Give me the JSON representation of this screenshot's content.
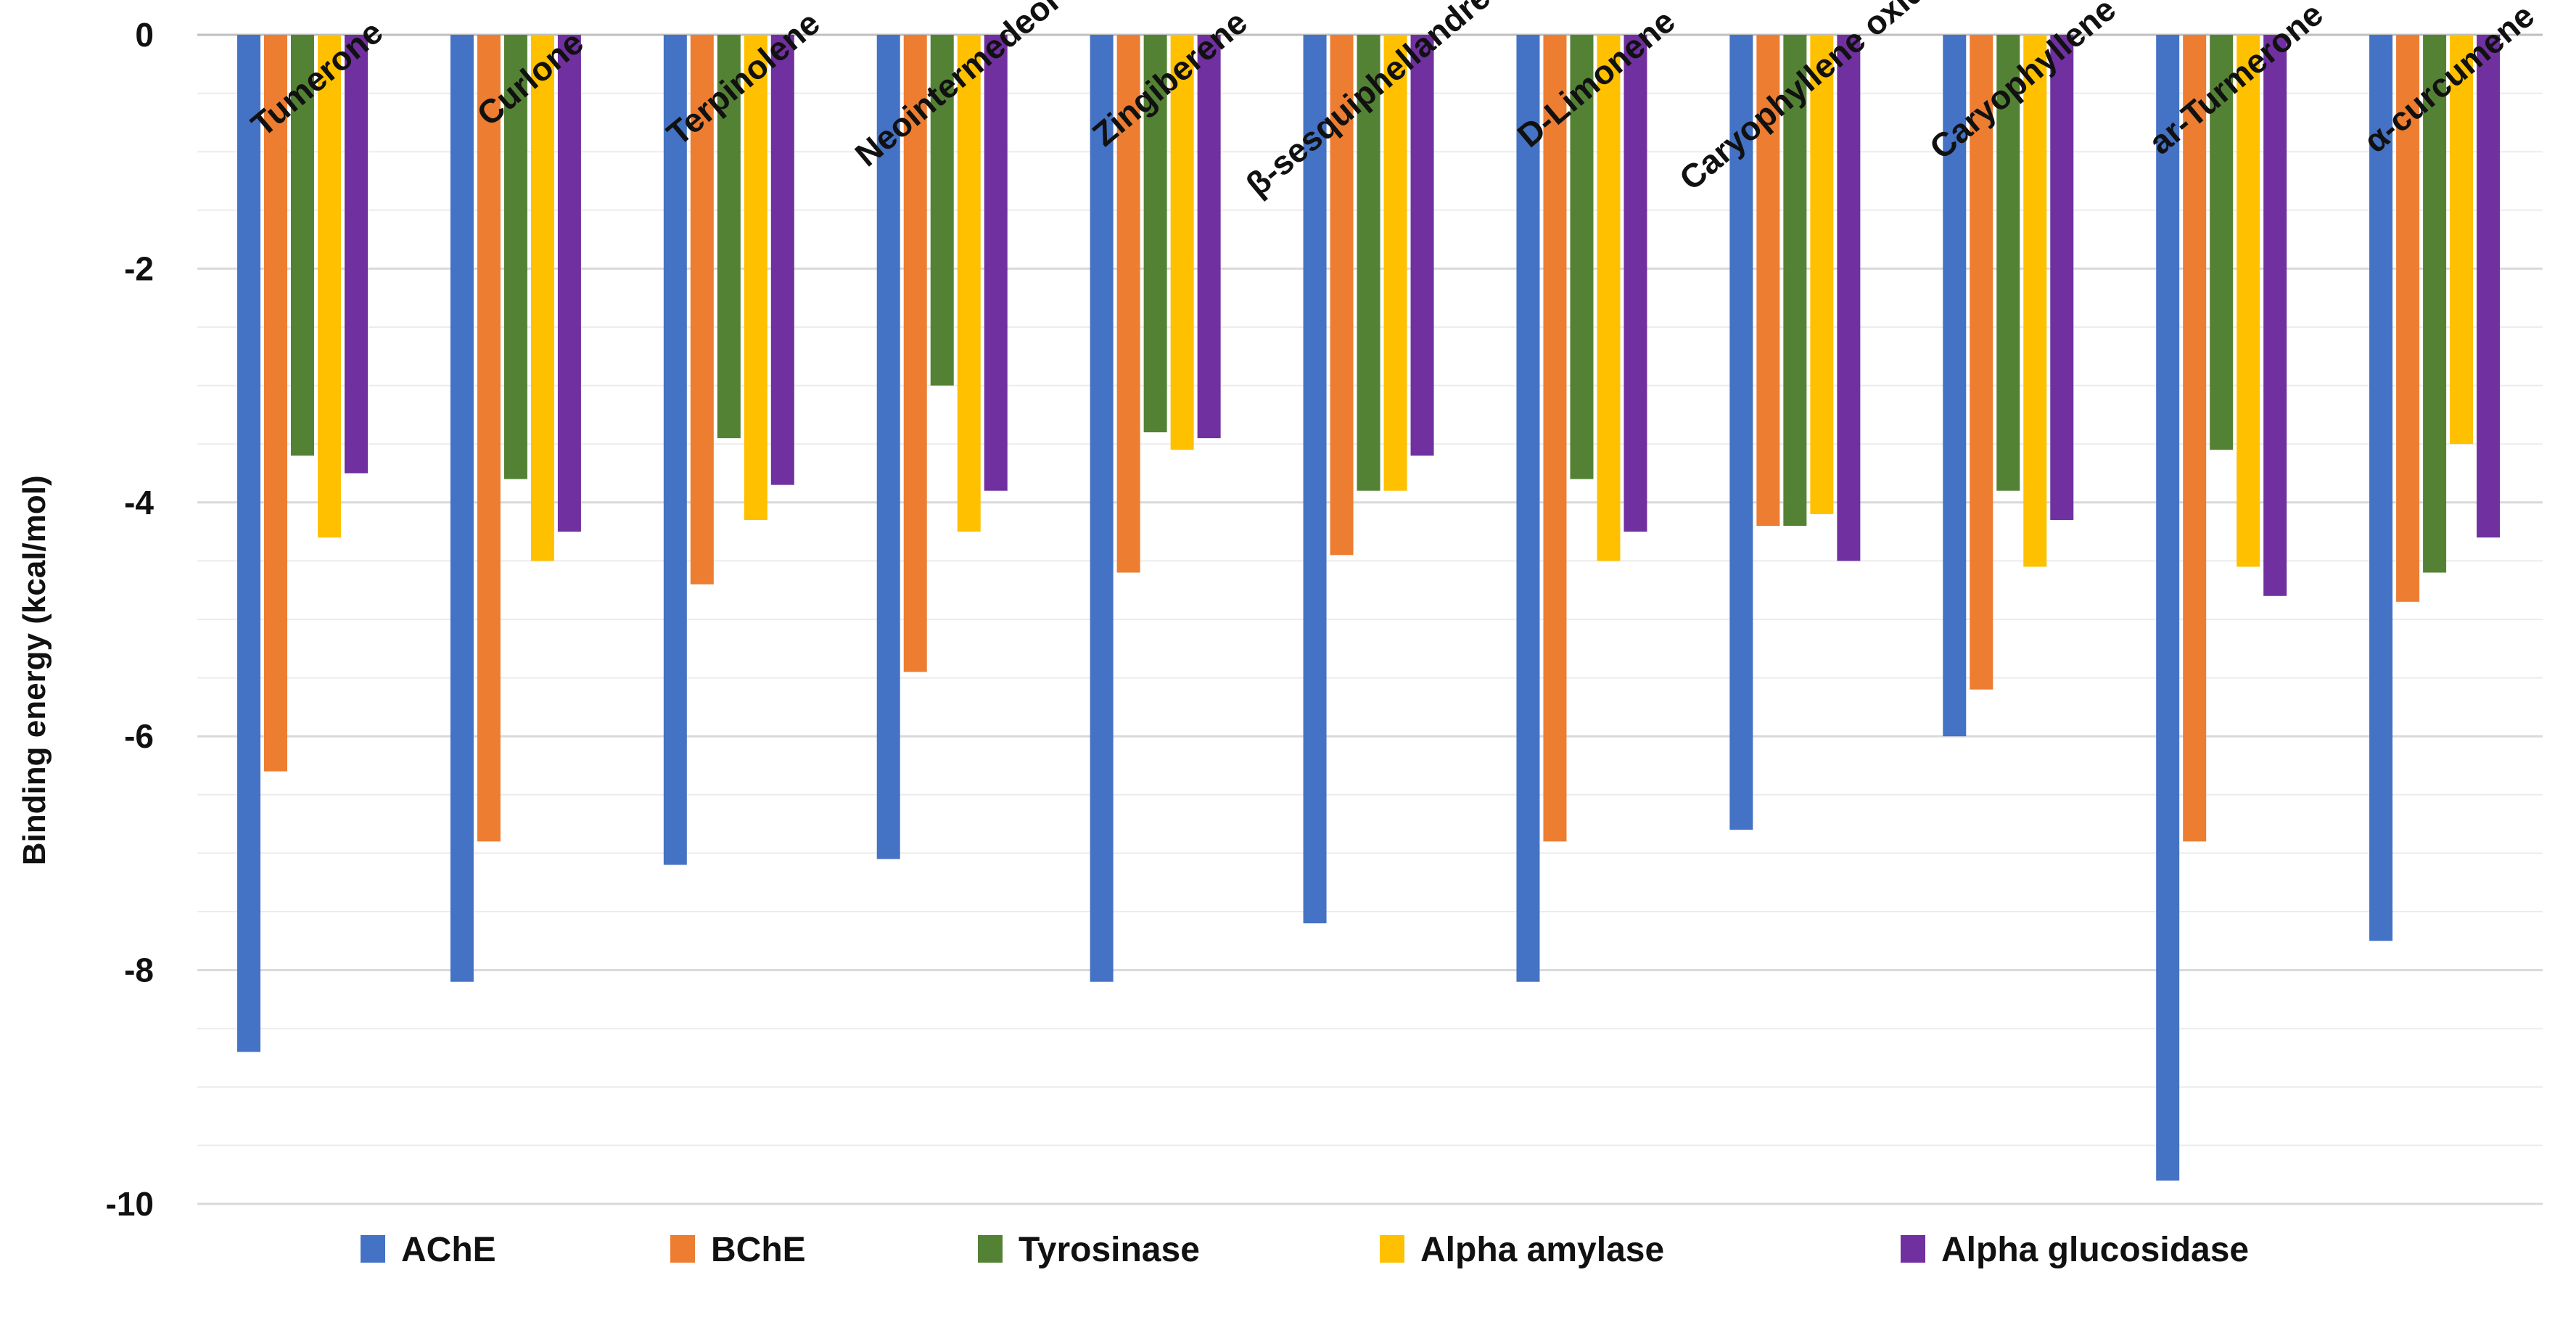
{
  "chart_data": {
    "type": "bar",
    "title": "",
    "xlabel": "",
    "ylabel": "Binding energy (kcal/mol)",
    "ylim": [
      -10,
      0
    ],
    "yticks": [
      0,
      -2,
      -4,
      -6,
      -8,
      -10
    ],
    "yticks_labels": [
      "0",
      "-2",
      "-4",
      "-6",
      "-8",
      "-10"
    ],
    "grid": true,
    "legend_position": "bottom",
    "categories": [
      "Tumerone",
      "Curlone",
      "Terpinolene",
      "Neointermedeol",
      "Zingiberene",
      "β-sesquiphellandrene",
      "D-Limonene",
      "Caryophyllene oxide",
      "Caryophyllene",
      "ar-Turmerone",
      "α-curcumene"
    ],
    "series": [
      {
        "name": "AChE",
        "color": "#4472C4",
        "values": [
          -8.7,
          -8.1,
          -7.1,
          -7.05,
          -8.1,
          -7.6,
          -8.1,
          -6.8,
          -6.0,
          -9.8,
          -7.75
        ]
      },
      {
        "name": "BChE",
        "color": "#ED7D31",
        "values": [
          -6.3,
          -6.9,
          -4.7,
          -5.45,
          -4.6,
          -4.45,
          -6.9,
          -4.2,
          -5.6,
          -6.9,
          -4.85
        ]
      },
      {
        "name": "Tyrosinase",
        "color": "#548235",
        "values": [
          -3.6,
          -3.8,
          -3.45,
          -3.0,
          -3.4,
          -3.9,
          -3.8,
          -4.2,
          -3.9,
          -3.55,
          -4.6
        ]
      },
      {
        "name": "Alpha amylase",
        "color": "#FFC000",
        "values": [
          -4.3,
          -4.5,
          -4.15,
          -4.25,
          -3.55,
          -3.9,
          -4.5,
          -4.1,
          -4.55,
          -4.55,
          -3.5
        ]
      },
      {
        "name": "Alpha glucosidase",
        "color": "#7030A0",
        "values": [
          -3.75,
          -4.25,
          -3.85,
          -3.9,
          -3.45,
          -3.6,
          -4.25,
          -4.5,
          -4.15,
          -4.8,
          -4.3
        ]
      }
    ]
  }
}
